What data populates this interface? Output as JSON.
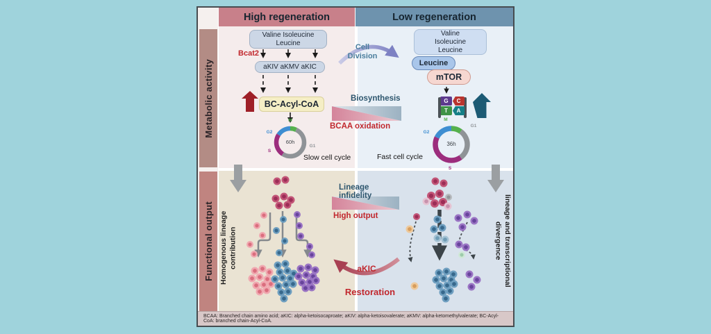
{
  "colors": {
    "canvas_bg": "#9fd3dc",
    "header_high_bg": "#c8808a",
    "header_low_bg": "#6e93ae",
    "sidebar_metabolic_bg": "#b38c85",
    "sidebar_functional_bg": "#c08480",
    "quad_top_left": "#f5ecec",
    "quad_top_right": "#e9f0f7",
    "quad_bottom_left": "#eae3d3",
    "quad_bottom_right": "#d9e2ec",
    "caption_bg": "#d8c8c8",
    "accent_red": "#c1272d",
    "accent_dark_red": "#9e1f27",
    "accent_teal": "#2d566e",
    "cells": {
      "crimson": {
        "outer": "#c25577",
        "inner": "#9c2d56"
      },
      "pink": {
        "outer": "#f0a8b0",
        "inner": "#da6e7e"
      },
      "blue": {
        "outer": "#6f9fc0",
        "inner": "#37688c"
      },
      "lightblue": {
        "outer": "#a4c2d4",
        "inner": "#6f9cb5"
      },
      "purple": {
        "outer": "#9a74c4",
        "inner": "#68449c"
      },
      "orange": {
        "outer": "#eec99b",
        "inner": "#d79d5c"
      },
      "gray": {
        "outer": "#b7babd",
        "inner": "#92969a"
      },
      "green": {
        "outer": "#cfe8d6",
        "inner": "#9ecbab"
      },
      "pinkpale": {
        "outer": "#e6c3d2",
        "inner": "#c892ad"
      }
    }
  },
  "headers": {
    "high": "High regeneration",
    "low": "Low regeneration"
  },
  "sidebars": {
    "metabolic": "Metabolic activity",
    "functional": "Functional output"
  },
  "metabolic_high": {
    "bcaa_pool": "Valine   Isoleucine\nLeucine",
    "enzyme": "Bcat2",
    "keto_acids": "aKIV   aKMV   aKIC",
    "product": "BC-Acyl-CoA",
    "cycle_center": "60h",
    "cycle_caption": "Slow cell cycle",
    "cycle_phases": [
      {
        "name": "M",
        "frac": 0.07,
        "color": "#55b14d"
      },
      {
        "name": "G1",
        "frac": 0.52,
        "color": "#8f9397"
      },
      {
        "name": "S",
        "frac": 0.25,
        "color": "#9c2d7d"
      },
      {
        "name": "G2",
        "frac": 0.16,
        "color": "#3e8ed2"
      }
    ]
  },
  "metabolic_low": {
    "bcaa_pool": "Valine\nIsoleucine\nLeucine",
    "leucine": "Leucine",
    "mtor": "mTOR",
    "bases": [
      "G",
      "C",
      "T",
      "A"
    ],
    "cycle_center": "36h",
    "cycle_caption": "Fast cell cycle",
    "cycle_phases": [
      {
        "name": "M",
        "frac": 0.1,
        "color": "#55b14d"
      },
      {
        "name": "G1",
        "frac": 0.3,
        "color": "#8f9397"
      },
      {
        "name": "S",
        "frac": 0.42,
        "color": "#9c2d7d"
      },
      {
        "name": "G2",
        "frac": 0.18,
        "color": "#3e8ed2"
      }
    ]
  },
  "middle": {
    "cell_division": "Cell\nDivision",
    "biosynthesis": "Biosynthesis",
    "bcaa_oxidation": "BCAA oxidation",
    "lineage_infidelity": "Lineage infidelity",
    "high_output": "High output",
    "akic": "aKIC",
    "restoration": "Restoration"
  },
  "functional_high": {
    "label": "Homogenous lineage\ncontribution"
  },
  "functional_low": {
    "label": "lineage and transcriptional\ndivergence"
  },
  "caption": "BCAA: Branched chain amino acid; aKIC: alpha-ketoisocaproate; aKIV: alpha-ketoisovalerate; aKMV: alpha-ketomethylvalerate; BC-Acyl-CoA: branched chain-Acyl-CoA."
}
